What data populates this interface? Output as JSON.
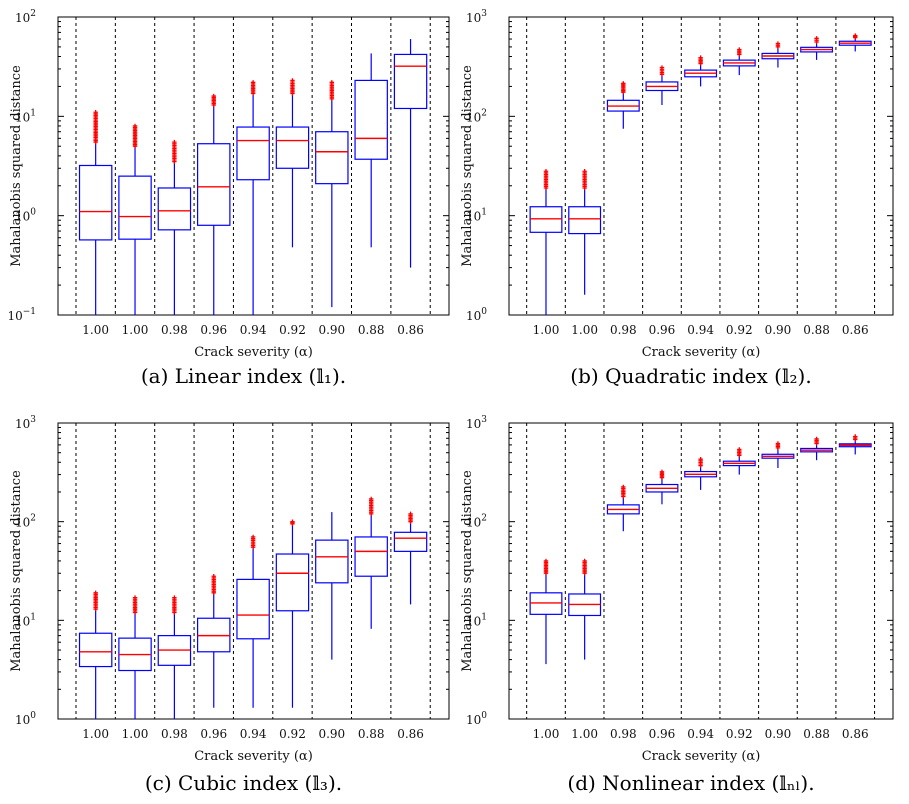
{
  "figure": {
    "panels_shared": {
      "ylabel": "Mahalanobis squared distance",
      "xlabel": "Crack severity (α)",
      "categories": [
        "1.00",
        "1.00",
        "0.98",
        "0.96",
        "0.94",
        "0.92",
        "0.90",
        "0.88",
        "0.86"
      ],
      "colors": {
        "box": "#0000ff",
        "median": "#ff0000",
        "outlier": "#ff0000",
        "separator": "#000000"
      }
    }
  },
  "chart_data": [
    {
      "type": "box",
      "caption": "(a)  Linear index (𝕝₁).",
      "ylabel": "Mahalanobis squared distance",
      "xlabel": "Crack severity (α)",
      "yscale": "log",
      "ylim": [
        0.1,
        100
      ],
      "yticks": [
        {
          "v": 0.1,
          "base": "10",
          "exp": "−1"
        },
        {
          "v": 1,
          "base": "10",
          "exp": "0"
        },
        {
          "v": 10,
          "base": "10",
          "exp": "1"
        },
        {
          "v": 100,
          "base": "10",
          "exp": "2"
        }
      ],
      "categories": [
        "1.00",
        "1.00",
        "0.98",
        "0.96",
        "0.94",
        "0.92",
        "0.90",
        "0.88",
        "0.86"
      ],
      "boxes": [
        {
          "low": 0.1,
          "q1": 0.57,
          "median": 1.1,
          "q3": 3.2,
          "high": 5.5,
          "out_max": 11
        },
        {
          "low": 0.1,
          "q1": 0.58,
          "median": 0.98,
          "q3": 2.5,
          "high": 5.0,
          "out_max": 8
        },
        {
          "low": 0.1,
          "q1": 0.72,
          "median": 1.12,
          "q3": 1.9,
          "high": 3.5,
          "out_max": 5.5
        },
        {
          "low": 0.1,
          "q1": 0.8,
          "median": 1.95,
          "q3": 5.3,
          "high": 13,
          "out_max": 16
        },
        {
          "low": 0.1,
          "q1": 2.3,
          "median": 5.7,
          "q3": 7.8,
          "high": 17,
          "out_max": 22
        },
        {
          "low": 0.48,
          "q1": 3.0,
          "median": 5.7,
          "q3": 7.8,
          "high": 17,
          "out_max": 23
        },
        {
          "low": 0.12,
          "q1": 2.1,
          "median": 4.4,
          "q3": 7.0,
          "high": 15,
          "out_max": 22
        },
        {
          "low": 0.48,
          "q1": 3.7,
          "median": 6.0,
          "q3": 23,
          "high": 43,
          "out_max": null
        },
        {
          "low": 0.3,
          "q1": 12,
          "median": 32,
          "q3": 42,
          "high": 60,
          "out_max": null
        }
      ]
    },
    {
      "type": "box",
      "caption": "(b)  Quadratic index (𝕝₂).",
      "ylabel": "Mahalanobis squared distance",
      "xlabel": "Crack severity (α)",
      "yscale": "log",
      "ylim": [
        1,
        1000
      ],
      "yticks": [
        {
          "v": 1,
          "base": "10",
          "exp": "0"
        },
        {
          "v": 10,
          "base": "10",
          "exp": "1"
        },
        {
          "v": 100,
          "base": "10",
          "exp": "2"
        },
        {
          "v": 1000,
          "base": "10",
          "exp": "3"
        }
      ],
      "categories": [
        "1.00",
        "1.00",
        "0.98",
        "0.96",
        "0.94",
        "0.92",
        "0.90",
        "0.88",
        "0.86"
      ],
      "boxes": [
        {
          "low": 1.0,
          "q1": 6.8,
          "median": 9.3,
          "q3": 12.3,
          "high": 19,
          "out_max": 28
        },
        {
          "low": 1.6,
          "q1": 6.6,
          "median": 9.3,
          "q3": 12.3,
          "high": 19,
          "out_max": 28
        },
        {
          "low": 75,
          "q1": 113,
          "median": 127,
          "q3": 145,
          "high": 175,
          "out_max": 215
        },
        {
          "low": 130,
          "q1": 182,
          "median": 200,
          "q3": 222,
          "high": 265,
          "out_max": 310
        },
        {
          "low": 200,
          "q1": 250,
          "median": 272,
          "q3": 292,
          "high": 340,
          "out_max": 390
        },
        {
          "low": 260,
          "q1": 322,
          "median": 345,
          "q3": 368,
          "high": 420,
          "out_max": 470
        },
        {
          "low": 310,
          "q1": 380,
          "median": 405,
          "q3": 430,
          "high": 500,
          "out_max": 540
        },
        {
          "low": 370,
          "q1": 445,
          "median": 470,
          "q3": 495,
          "high": 560,
          "out_max": 610
        },
        {
          "low": 450,
          "q1": 520,
          "median": 545,
          "q3": 570,
          "high": 620,
          "out_max": 650
        }
      ]
    },
    {
      "type": "box",
      "caption": "(c)  Cubic index (𝕝₃).",
      "ylabel": "Mahalanobis squared distance",
      "xlabel": "Crack severity (α)",
      "yscale": "log",
      "ylim": [
        1,
        1000
      ],
      "yticks": [
        {
          "v": 1,
          "base": "10",
          "exp": "0"
        },
        {
          "v": 10,
          "base": "10",
          "exp": "1"
        },
        {
          "v": 100,
          "base": "10",
          "exp": "2"
        },
        {
          "v": 1000,
          "base": "10",
          "exp": "3"
        }
      ],
      "categories": [
        "1.00",
        "1.00",
        "0.98",
        "0.96",
        "0.94",
        "0.92",
        "0.90",
        "0.88",
        "0.86"
      ],
      "boxes": [
        {
          "low": 1.0,
          "q1": 3.4,
          "median": 4.8,
          "q3": 7.4,
          "high": 13,
          "out_max": 19
        },
        {
          "low": 1.0,
          "q1": 3.1,
          "median": 4.5,
          "q3": 6.6,
          "high": 12,
          "out_max": 17
        },
        {
          "low": 1.0,
          "q1": 3.5,
          "median": 5.0,
          "q3": 7.0,
          "high": 12,
          "out_max": 17
        },
        {
          "low": 1.3,
          "q1": 4.8,
          "median": 7.0,
          "q3": 10.5,
          "high": 19,
          "out_max": 28
        },
        {
          "low": 1.3,
          "q1": 6.5,
          "median": 11.3,
          "q3": 26,
          "high": 55,
          "out_max": 70
        },
        {
          "low": 1.3,
          "q1": 12.5,
          "median": 30,
          "q3": 47,
          "high": 95,
          "out_max": 100
        },
        {
          "low": 4.0,
          "q1": 24,
          "median": 44,
          "q3": 65,
          "high": 125,
          "out_max": null
        },
        {
          "low": 8.2,
          "q1": 28,
          "median": 50,
          "q3": 70,
          "high": 120,
          "out_max": 170
        },
        {
          "low": 14.5,
          "q1": 50,
          "median": 68,
          "q3": 78,
          "high": 100,
          "out_max": 120
        }
      ]
    },
    {
      "type": "box",
      "caption": "(d)  Nonlinear index (𝕝ₙₗ).",
      "ylabel": "Mahalanobis squared distance",
      "xlabel": "Crack severity (α)",
      "yscale": "log",
      "ylim": [
        1,
        1000
      ],
      "yticks": [
        {
          "v": 1,
          "base": "10",
          "exp": "0"
        },
        {
          "v": 10,
          "base": "10",
          "exp": "1"
        },
        {
          "v": 100,
          "base": "10",
          "exp": "2"
        },
        {
          "v": 1000,
          "base": "10",
          "exp": "3"
        }
      ],
      "categories": [
        "1.00",
        "1.00",
        "0.98",
        "0.96",
        "0.94",
        "0.92",
        "0.90",
        "0.88",
        "0.86"
      ],
      "boxes": [
        {
          "low": 3.6,
          "q1": 11.5,
          "median": 15,
          "q3": 19,
          "high": 30,
          "out_max": 40
        },
        {
          "low": 4.0,
          "q1": 11.2,
          "median": 14.5,
          "q3": 18.5,
          "high": 30,
          "out_max": 40
        },
        {
          "low": 80,
          "q1": 120,
          "median": 133,
          "q3": 148,
          "high": 180,
          "out_max": 225
        },
        {
          "low": 150,
          "q1": 200,
          "median": 218,
          "q3": 238,
          "high": 280,
          "out_max": 320
        },
        {
          "low": 210,
          "q1": 285,
          "median": 302,
          "q3": 322,
          "high": 370,
          "out_max": 430
        },
        {
          "low": 300,
          "q1": 370,
          "median": 390,
          "q3": 410,
          "high": 470,
          "out_max": 540
        },
        {
          "low": 350,
          "q1": 440,
          "median": 460,
          "q3": 482,
          "high": 560,
          "out_max": 620
        },
        {
          "low": 420,
          "q1": 510,
          "median": 530,
          "q3": 552,
          "high": 620,
          "out_max": 690
        },
        {
          "low": 480,
          "q1": 575,
          "median": 595,
          "q3": 615,
          "high": 680,
          "out_max": 730
        }
      ]
    }
  ]
}
